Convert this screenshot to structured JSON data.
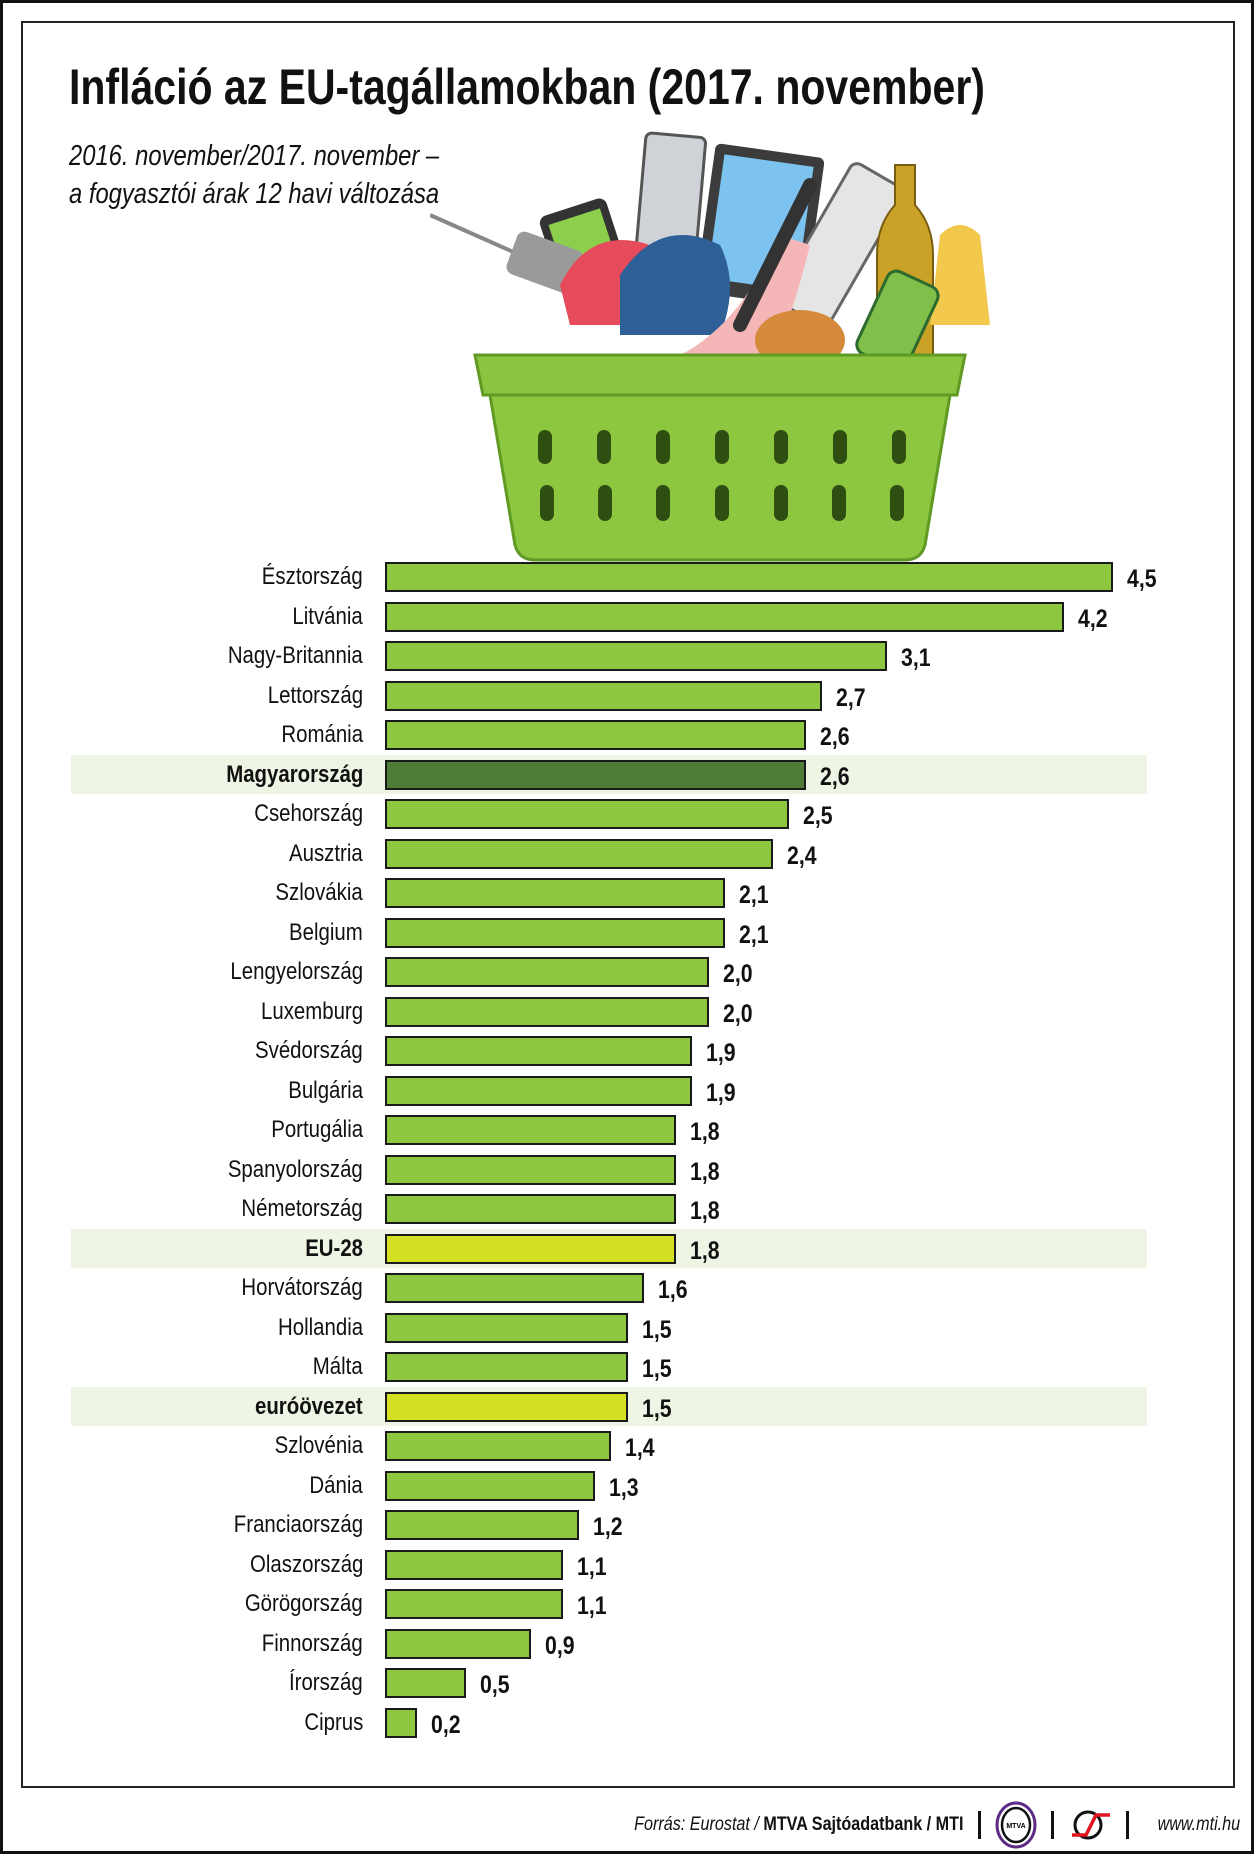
{
  "title": "Infláció az EU-tagállamokban (2017. november)",
  "subtitle_line1": "2016. november/2017. november –",
  "subtitle_line2": "a fogyasztói árak 12 havi változása",
  "colors": {
    "bar": "#8dc63f",
    "highlight_hu": "#4f7c37",
    "highlight_eu": "#d4e021",
    "band": "#eef5e4"
  },
  "chart_data": {
    "type": "bar",
    "orientation": "horizontal",
    "title": "Infláció az EU-tagállamokban (2017. november)",
    "categories": [
      "Észtország",
      "Litvánia",
      "Nagy-Britannia",
      "Lettország",
      "Románia",
      "Magyarország",
      "Csehország",
      "Ausztria",
      "Szlovákia",
      "Belgium",
      "Lengyelország",
      "Luxemburg",
      "Svédország",
      "Bulgária",
      "Portugália",
      "Spanyolország",
      "Németország",
      "EU-28",
      "Horvátország",
      "Hollandia",
      "Málta",
      "euróövezet",
      "Szlovénia",
      "Dánia",
      "Franciaország",
      "Olaszország",
      "Görögország",
      "Finnország",
      "Írország",
      "Ciprus"
    ],
    "values": [
      4.5,
      4.2,
      3.1,
      2.7,
      2.6,
      2.6,
      2.5,
      2.4,
      2.1,
      2.1,
      2.0,
      2.0,
      1.9,
      1.9,
      1.8,
      1.8,
      1.8,
      1.8,
      1.6,
      1.5,
      1.5,
      1.5,
      1.4,
      1.3,
      1.2,
      1.1,
      1.1,
      0.9,
      0.5,
      0.2
    ],
    "value_labels": [
      "4,5",
      "4,2",
      "3,1",
      "2,7",
      "2,6",
      "2,6",
      "2,5",
      "2,4",
      "2,1",
      "2,1",
      "2,0",
      "2,0",
      "1,9",
      "1,9",
      "1,8",
      "1,8",
      "1,8",
      "1,8",
      "1,6",
      "1,5",
      "1,5",
      "1,5",
      "1,4",
      "1,3",
      "1,2",
      "1,1",
      "1,1",
      "0,9",
      "0,5",
      "0,2"
    ],
    "highlighted": {
      "Magyarország": "hu",
      "EU-28": "eu",
      "euróövezet": "eu"
    },
    "xlim": [
      0,
      4.5
    ],
    "grid": false,
    "xlabel": "",
    "ylabel": ""
  },
  "footer": {
    "source_prefix": "Forrás: Eurostat / ",
    "source_bold": "MTVA Sajtóadatbank",
    "source_suffix": " / MTI",
    "mtva_logo_text": "MTVA",
    "url": "www.mti.hu"
  }
}
